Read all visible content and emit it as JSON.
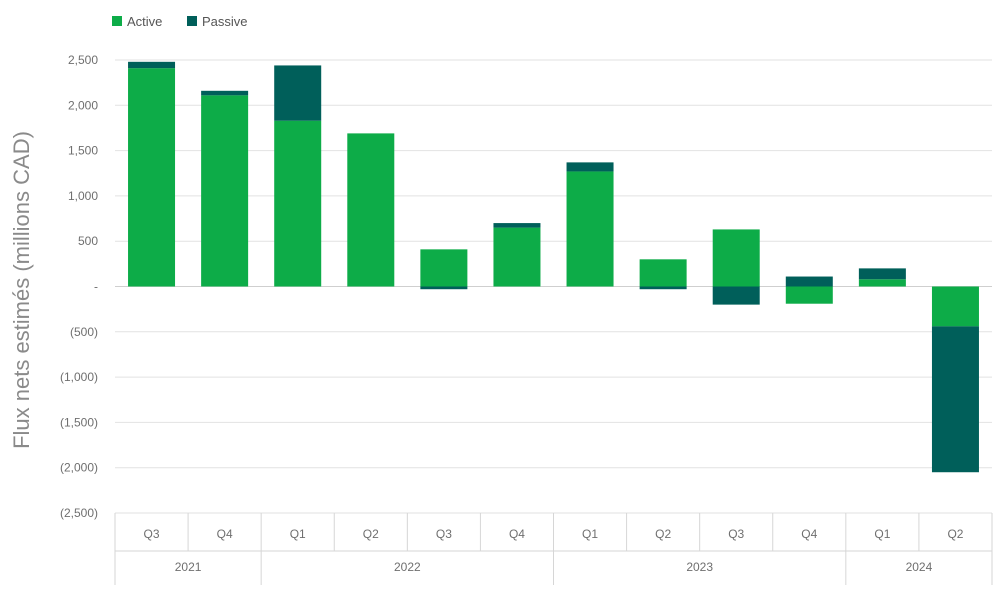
{
  "chart_data": {
    "type": "bar",
    "stacked": true,
    "ylabel": "Flux nets estimés (millions CAD)",
    "xlabel": "",
    "ylim": [
      -2500,
      2500
    ],
    "yticks": [
      2500,
      2000,
      1500,
      1000,
      500,
      0,
      -500,
      -1000,
      -1500,
      -2000,
      -2500
    ],
    "ytick_labels": [
      "2,500",
      "2,000",
      "1,500",
      "1,000",
      "500",
      "-",
      "(500)",
      "(1,000)",
      "(1,500)",
      "(2,000)",
      "(2,500)"
    ],
    "categories": [
      "Q3",
      "Q4",
      "Q1",
      "Q2",
      "Q3",
      "Q4",
      "Q1",
      "Q2",
      "Q3",
      "Q4",
      "Q1",
      "Q2"
    ],
    "year_groups": [
      {
        "label": "2021",
        "count": 2
      },
      {
        "label": "2022",
        "count": 4
      },
      {
        "label": "2023",
        "count": 4
      },
      {
        "label": "2024",
        "count": 2
      }
    ],
    "series": [
      {
        "name": "Active",
        "color": "#0dac48",
        "values": [
          2410,
          2110,
          1830,
          1690,
          410,
          650,
          1270,
          300,
          630,
          -190,
          80,
          -440
        ]
      },
      {
        "name": "Passive",
        "color": "#005f5a",
        "values": [
          70,
          50,
          610,
          0,
          -30,
          50,
          100,
          -30,
          -200,
          110,
          120,
          -1610
        ]
      }
    ],
    "legend_position": "top-left",
    "grid": true
  }
}
